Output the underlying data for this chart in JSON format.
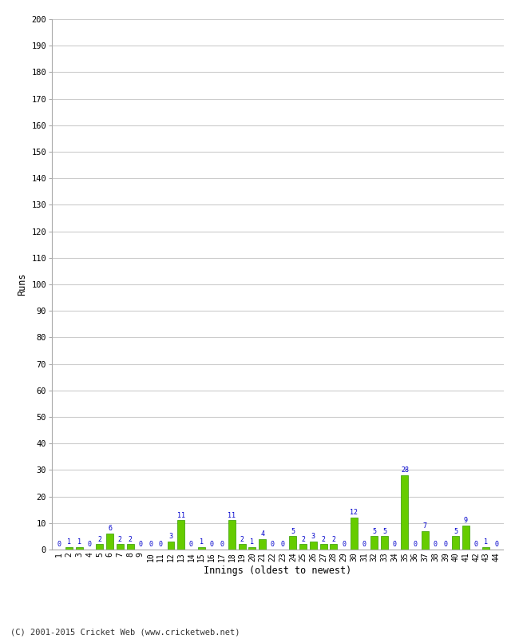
{
  "xlabel": "Innings (oldest to newest)",
  "ylabel": "Runs",
  "ylim": [
    0,
    200
  ],
  "yticks": [
    0,
    10,
    20,
    30,
    40,
    50,
    60,
    70,
    80,
    90,
    100,
    110,
    120,
    130,
    140,
    150,
    160,
    170,
    180,
    190,
    200
  ],
  "innings": [
    1,
    2,
    3,
    4,
    5,
    6,
    7,
    8,
    9,
    10,
    11,
    12,
    13,
    14,
    15,
    16,
    17,
    18,
    19,
    20,
    21,
    22,
    23,
    24,
    25,
    26,
    27,
    28,
    29,
    30,
    31,
    32,
    33,
    34,
    35,
    36,
    37,
    38,
    39,
    40,
    41,
    42,
    43,
    44
  ],
  "values": [
    0,
    1,
    1,
    0,
    2,
    6,
    2,
    2,
    0,
    0,
    0,
    3,
    11,
    0,
    1,
    0,
    0,
    11,
    2,
    1,
    4,
    0,
    0,
    5,
    2,
    3,
    2,
    2,
    0,
    12,
    0,
    5,
    5,
    0,
    28,
    0,
    7,
    0,
    0,
    5,
    9,
    0,
    1,
    0
  ],
  "bar_color": "#66cc00",
  "bar_edge_color": "#339900",
  "label_color": "#0000cc",
  "background_color": "#ffffff",
  "grid_color": "#cccccc",
  "footer": "(C) 2001-2015 Cricket Web (www.cricketweb.net)"
}
